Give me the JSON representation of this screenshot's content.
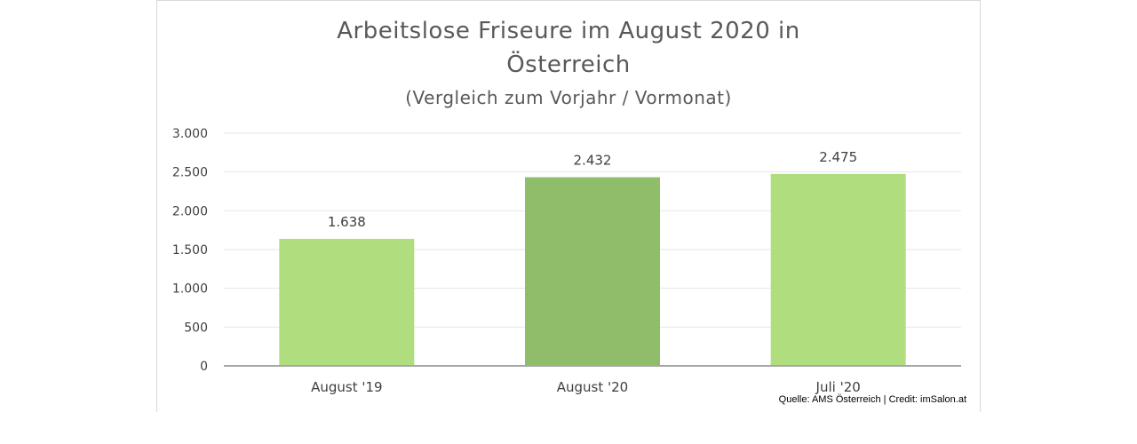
{
  "chart_data": {
    "type": "bar",
    "title": "Arbeitslose Friseure im August 2020 in",
    "title_line2": "Österreich",
    "subtitle": "(Vergleich zum Vorjahr / Vormonat)",
    "categories": [
      "August '19",
      "August '20",
      "Juli '20"
    ],
    "values": [
      1638,
      2432,
      2475
    ],
    "value_labels": [
      "1.638",
      "2.432",
      "2.475"
    ],
    "bar_colors": [
      "#b0dd7e",
      "#8fbd6a",
      "#b0dd7e"
    ],
    "ylim": [
      0,
      3000
    ],
    "yticks": [
      0,
      500,
      1000,
      1500,
      2000,
      2500,
      3000
    ],
    "ytick_labels": [
      "0",
      "500",
      "1.000",
      "1.500",
      "2.000",
      "2.500",
      "3.000"
    ],
    "grid": true,
    "xlabel": "",
    "ylabel": ""
  },
  "footer": {
    "source": "Quelle: AMS Österreich | Credit: imSalon.at"
  }
}
